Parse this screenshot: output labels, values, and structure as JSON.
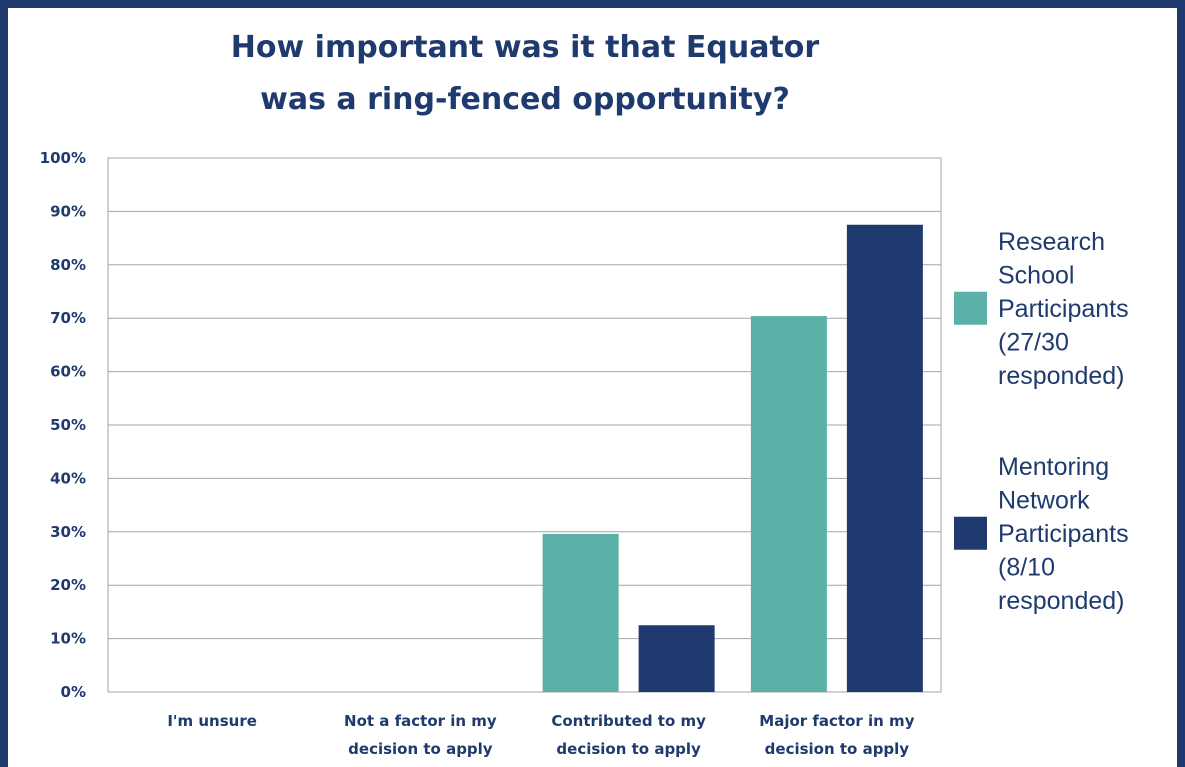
{
  "chart_data": {
    "type": "bar",
    "title": [
      "How important was it that Equator",
      "was a ring-fenced opportunity?"
    ],
    "categories": [
      [
        "I'm unsure"
      ],
      [
        "Not a factor in my",
        "decision to apply"
      ],
      [
        "Contributed to my",
        "decision to apply"
      ],
      [
        "Major factor in my",
        "decision to apply"
      ]
    ],
    "series": [
      {
        "name": [
          "Research",
          "School",
          "Participants",
          "(27/30",
          "responded)"
        ],
        "color": "#5bb0a8",
        "values": [
          0,
          0,
          29.6,
          70.4
        ]
      },
      {
        "name": [
          "Mentoring",
          "Network",
          "Participants",
          "(8/10",
          "responded)"
        ],
        "color": "#1f3a6e",
        "values": [
          0,
          0,
          12.5,
          87.5
        ]
      }
    ],
    "ylim": [
      0,
      100
    ],
    "yticks": [
      "0%",
      "10%",
      "20%",
      "30%",
      "40%",
      "50%",
      "60%",
      "70%",
      "80%",
      "90%",
      "100%"
    ],
    "grid": true,
    "legend_position": "right"
  }
}
